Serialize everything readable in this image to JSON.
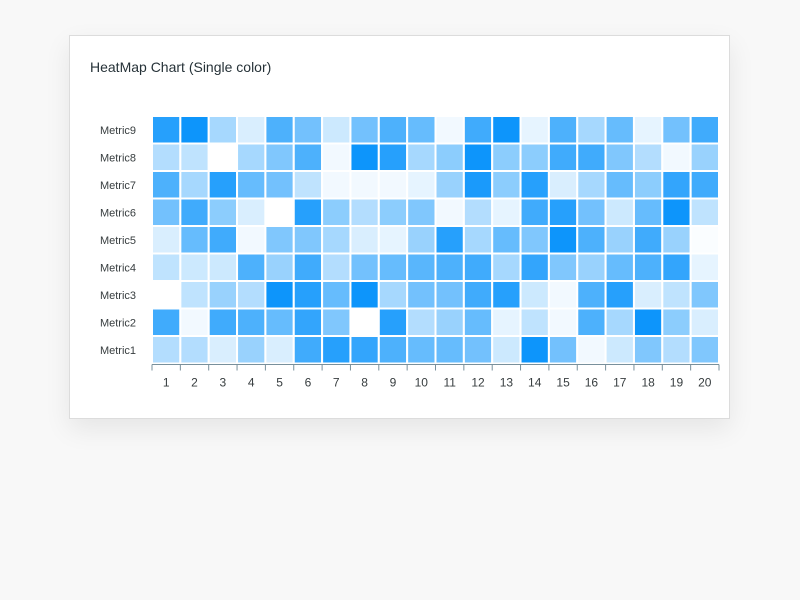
{
  "chart_data": {
    "type": "heatmap",
    "title": "HeatMap Chart (Single color)",
    "base_color": "#008FFB",
    "x_categories": [
      "1",
      "2",
      "3",
      "4",
      "5",
      "6",
      "7",
      "8",
      "9",
      "10",
      "11",
      "12",
      "13",
      "14",
      "15",
      "16",
      "17",
      "18",
      "19",
      "20"
    ],
    "series": [
      {
        "name": "Metric1",
        "values": [
          30,
          30,
          15,
          40,
          15,
          75,
          85,
          80,
          70,
          60,
          60,
          55,
          20,
          95,
          55,
          5,
          20,
          50,
          30,
          50
        ]
      },
      {
        "name": "Metric2",
        "values": [
          75,
          5,
          75,
          70,
          60,
          80,
          50,
          0,
          85,
          30,
          40,
          60,
          10,
          25,
          5,
          70,
          35,
          95,
          45,
          15
        ]
      },
      {
        "name": "Metric3",
        "values": [
          0,
          25,
          40,
          30,
          95,
          85,
          60,
          95,
          35,
          55,
          55,
          75,
          85,
          20,
          5,
          70,
          85,
          15,
          25,
          50
        ]
      },
      {
        "name": "Metric4",
        "values": [
          25,
          20,
          20,
          70,
          40,
          75,
          30,
          55,
          60,
          65,
          70,
          75,
          35,
          80,
          50,
          40,
          60,
          70,
          80,
          10
        ]
      },
      {
        "name": "Metric5",
        "values": [
          15,
          60,
          75,
          5,
          50,
          50,
          35,
          15,
          10,
          40,
          85,
          35,
          60,
          50,
          95,
          70,
          40,
          75,
          40,
          2
        ]
      },
      {
        "name": "Metric6",
        "values": [
          55,
          75,
          45,
          15,
          0,
          85,
          45,
          30,
          45,
          50,
          5,
          30,
          10,
          75,
          85,
          55,
          20,
          60,
          95,
          25
        ]
      },
      {
        "name": "Metric7",
        "values": [
          70,
          35,
          85,
          60,
          55,
          25,
          5,
          5,
          5,
          10,
          40,
          90,
          45,
          85,
          15,
          35,
          60,
          45,
          80,
          75
        ]
      },
      {
        "name": "Metric8",
        "values": [
          30,
          25,
          0,
          35,
          50,
          70,
          5,
          95,
          85,
          35,
          45,
          95,
          45,
          45,
          75,
          75,
          50,
          30,
          5,
          40
        ]
      },
      {
        "name": "Metric9",
        "values": [
          85,
          95,
          35,
          15,
          70,
          55,
          20,
          55,
          70,
          60,
          5,
          75,
          95,
          10,
          70,
          35,
          60,
          10,
          55,
          75
        ]
      }
    ]
  }
}
